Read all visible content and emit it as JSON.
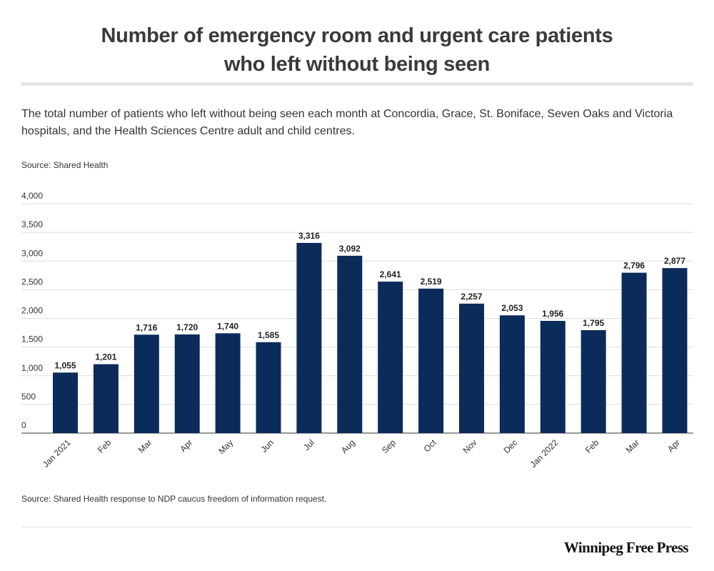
{
  "header": {
    "title_line1": "Number of emergency room and urgent care patients",
    "title_line2": "who left without being seen",
    "subtitle": "The total number of patients who left without being seen each month at Concordia, Grace, St. Boniface, Seven Oaks and Victoria hospitals, and the Health Sciences Centre adult and child centres.",
    "source_top": "Source: Shared Health"
  },
  "footer": {
    "source": "Source: Shared Health response to NDP caucus freedom of information request.",
    "brand": "Winnipeg Free Press"
  },
  "colors": {
    "bar": "#0b2b5b",
    "gridline": "#dddddd",
    "title_rule": "#e6e6e6"
  },
  "chart_data": {
    "type": "bar",
    "title": "Number of emergency room and urgent care patients who left without being seen",
    "xlabel": "",
    "ylabel": "",
    "categories": [
      "Jan 2021",
      "Feb",
      "Mar",
      "Apr",
      "May",
      "Jun",
      "Jul",
      "Aug",
      "Sep",
      "Oct",
      "Nov",
      "Dec",
      "Jan 2022",
      "Feb",
      "Mar",
      "Apr"
    ],
    "values": [
      1055,
      1201,
      1716,
      1720,
      1740,
      1585,
      3316,
      3092,
      2641,
      2519,
      2257,
      2053,
      1956,
      1795,
      2796,
      2877
    ],
    "value_labels": [
      "1,055",
      "1,201",
      "1,716",
      "1,720",
      "1,740",
      "1,585",
      "3,316",
      "3,092",
      "2,641",
      "2,519",
      "2,257",
      "2,053",
      "1,956",
      "1,795",
      "2,796",
      "2,877"
    ],
    "ylim": [
      0,
      4000
    ],
    "yticks": [
      0,
      500,
      1000,
      1500,
      2000,
      2500,
      3000,
      3500,
      4000
    ],
    "ytick_labels": [
      "0",
      "500",
      "1,000",
      "1,500",
      "2,000",
      "2,500",
      "3,000",
      "3,500",
      "4,000"
    ],
    "grid": true,
    "legend": "none"
  }
}
